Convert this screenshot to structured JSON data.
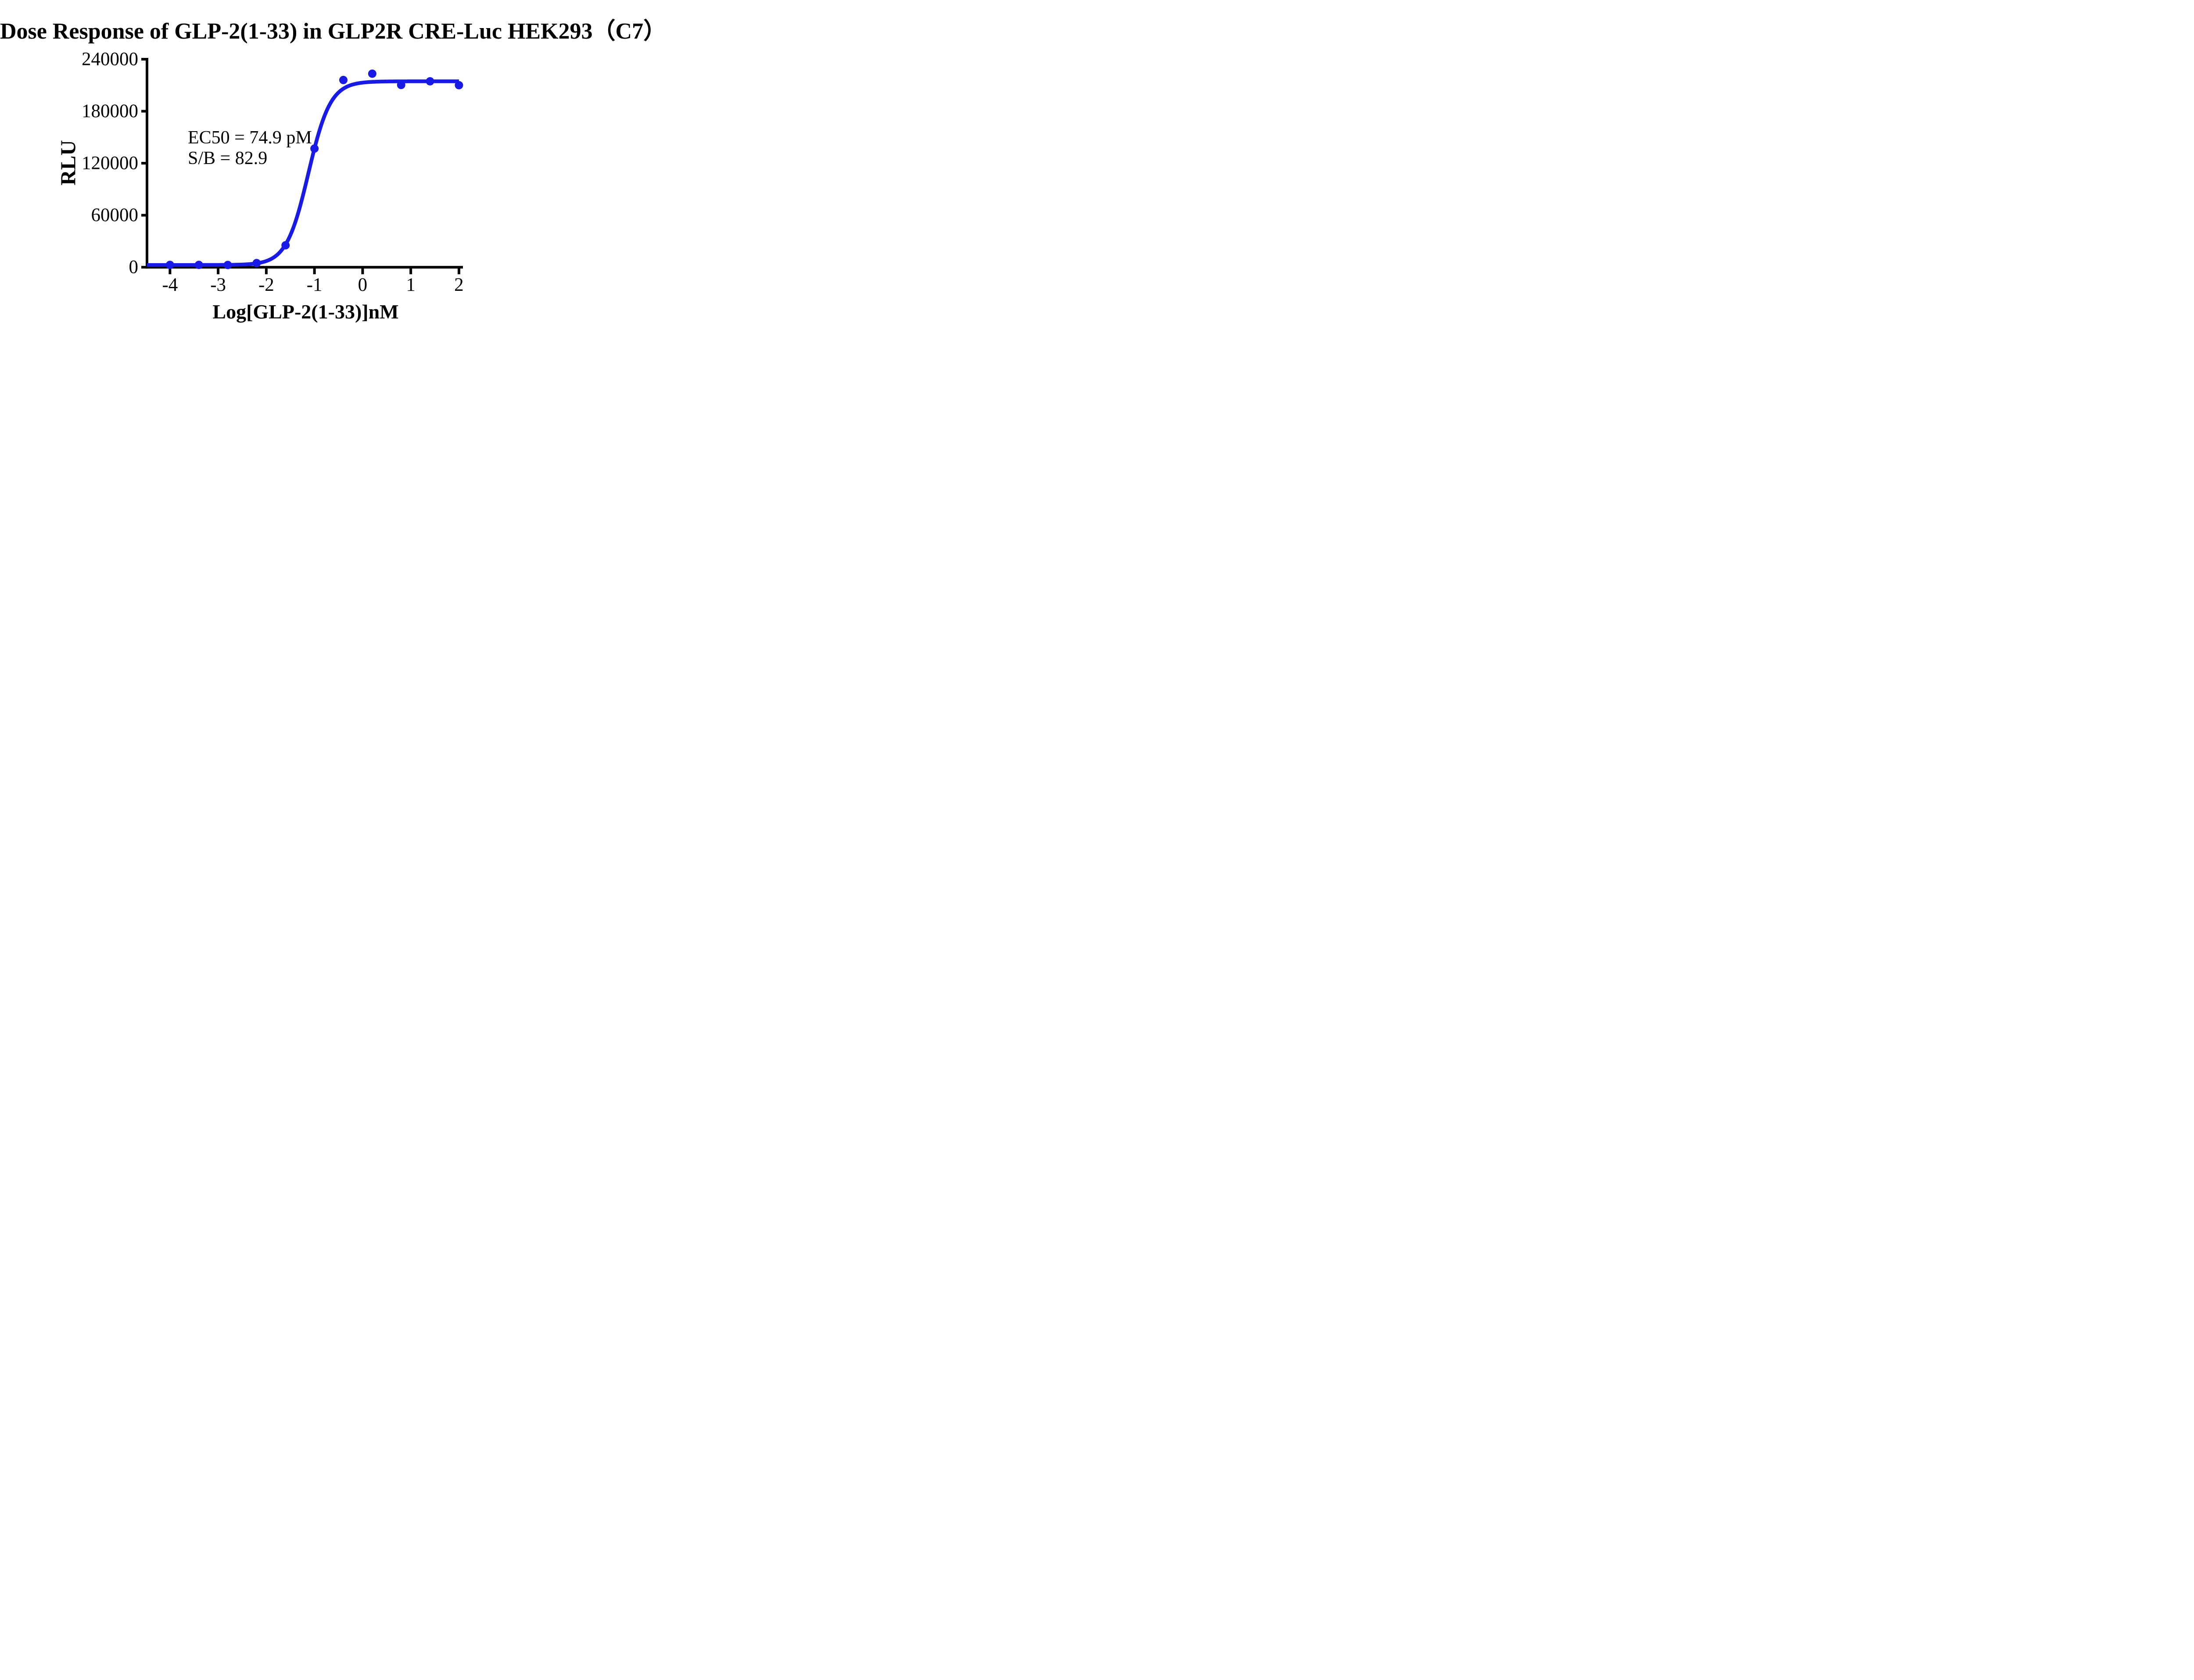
{
  "title": "Dose Response of GLP-2(1-33) in GLP2R CRE-Luc HEK293（C7）",
  "annotation": {
    "ec50": "EC50 = 74.9 pM",
    "sb": "S/B = 82.9"
  },
  "chart_data": {
    "type": "scatter",
    "title": "Dose Response of GLP-2(1-33) in GLP2R CRE-Luc HEK293（C7）",
    "xlabel": "Log[GLP-2(1-33)]nM",
    "ylabel": "RLU",
    "x_ticks": [
      -4,
      -3,
      -2,
      -1,
      0,
      1,
      2
    ],
    "y_ticks": [
      0,
      60000,
      120000,
      180000,
      240000
    ],
    "xlim": [
      -4.48,
      2.1
    ],
    "ylim": [
      0,
      240000
    ],
    "grid": false,
    "legend": "none",
    "series": [
      {
        "name": "GLP-2(1-33)",
        "x": [
          -4,
          -3.4,
          -2.8,
          -2.2,
          -1.6,
          -1,
          -0.4,
          0.2,
          0.8,
          1.4,
          2
        ],
        "y": [
          2700,
          2700,
          2600,
          4800,
          25300,
          136900,
          216000,
          223300,
          210300,
          214500,
          210000
        ]
      }
    ],
    "fit_curve": {
      "model": "4PL",
      "bottom": 2590,
      "top": 214500,
      "log_ec50": -1.1255,
      "hill": 1.9,
      "x_start": -4.48,
      "x_end": 2.0
    },
    "ec50_pM": 74.9,
    "signal_to_background": 82.9,
    "series_color": "#1A1AE6",
    "axis_color": "#000000",
    "background_color": "#FFFFFF"
  }
}
